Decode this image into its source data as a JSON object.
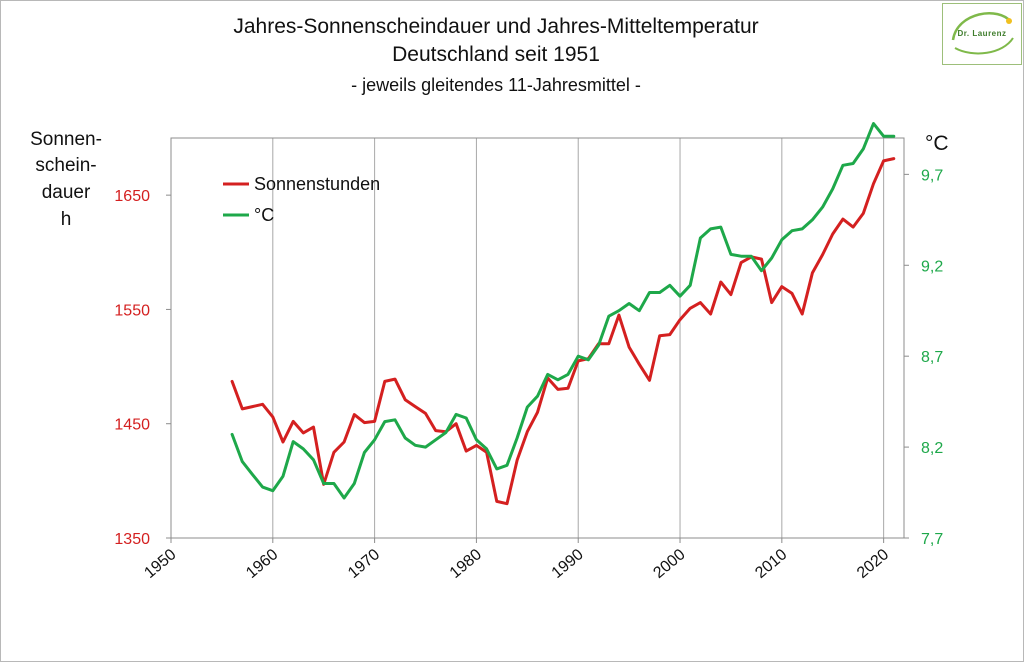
{
  "title": "Jahres-Sonnenscheindauer und Jahres-Mitteltemperatur",
  "subtitle": "Deutschland seit 1951",
  "note": "- jeweils gleitendes 11-Jahresmittel -",
  "logo_text": "Dr. Laurenz",
  "y_left_label_lines": [
    "Sonnen-",
    "schein-",
    "dauer",
    "h"
  ],
  "y_right_label": "°C",
  "colors": {
    "sun": "#d42020",
    "temp": "#1ea84a",
    "left_axis": "#d42020",
    "right_axis": "#1ea84a"
  },
  "chart_data": {
    "type": "line",
    "xlim": [
      1950,
      2022
    ],
    "x_ticks": [
      1950,
      1960,
      1970,
      1980,
      1990,
      2000,
      2010,
      2020
    ],
    "y_left": {
      "ylim": [
        1350,
        1700
      ],
      "ticks": [
        1350,
        1450,
        1550,
        1650
      ],
      "color": "#d42020"
    },
    "y_right": {
      "ylim": [
        7.7,
        9.9
      ],
      "ticks": [
        "7,7",
        "8,2",
        "8,7",
        "9,2",
        "9,7"
      ],
      "tick_values": [
        7.7,
        8.2,
        8.7,
        9.2,
        9.7
      ],
      "color": "#1ea84a"
    },
    "grid": "vertical",
    "legend_position": "top-left",
    "series": [
      {
        "name": "Sonnenstunden",
        "axis": "left",
        "x": [
          1956,
          1957,
          1958,
          1959,
          1960,
          1961,
          1962,
          1963,
          1964,
          1965,
          1966,
          1967,
          1968,
          1969,
          1970,
          1971,
          1972,
          1973,
          1974,
          1975,
          1976,
          1977,
          1978,
          1979,
          1980,
          1981,
          1982,
          1983,
          1984,
          1985,
          1986,
          1987,
          1988,
          1989,
          1990,
          1991,
          1992,
          1993,
          1994,
          1995,
          1996,
          1997,
          1998,
          1999,
          2000,
          2001,
          2002,
          2003,
          2004,
          2005,
          2006,
          2007,
          2008,
          2009,
          2010,
          2011,
          2012,
          2013,
          2014,
          2015,
          2016,
          2017,
          2018,
          2019,
          2020,
          2021
        ],
        "values": [
          1487,
          1463,
          1465,
          1467,
          1456,
          1434,
          1452,
          1442,
          1447,
          1397,
          1425,
          1434,
          1458,
          1451,
          1452,
          1487,
          1489,
          1471,
          1465,
          1459,
          1444,
          1443,
          1450,
          1426,
          1431,
          1425,
          1382,
          1380,
          1418,
          1443,
          1460,
          1490,
          1480,
          1481,
          1505,
          1507,
          1520,
          1520,
          1545,
          1517,
          1502,
          1488,
          1527,
          1528,
          1541,
          1551,
          1556,
          1546,
          1574,
          1563,
          1591,
          1596,
          1594,
          1556,
          1570,
          1564,
          1546,
          1582,
          1598,
          1616,
          1629,
          1622,
          1634,
          1660,
          1680,
          1682
        ]
      },
      {
        "name": "°C",
        "axis": "right",
        "x": [
          1956,
          1957,
          1958,
          1959,
          1960,
          1961,
          1962,
          1963,
          1964,
          1965,
          1966,
          1967,
          1968,
          1969,
          1970,
          1971,
          1972,
          1973,
          1974,
          1975,
          1976,
          1977,
          1978,
          1979,
          1980,
          1981,
          1982,
          1983,
          1984,
          1985,
          1986,
          1987,
          1988,
          1989,
          1990,
          1991,
          1992,
          1993,
          1994,
          1995,
          1996,
          1997,
          1998,
          1999,
          2000,
          2001,
          2002,
          2003,
          2004,
          2005,
          2006,
          2007,
          2008,
          2009,
          2010,
          2011,
          2012,
          2013,
          2014,
          2015,
          2016,
          2017,
          2018,
          2019,
          2020,
          2021
        ],
        "values": [
          8.27,
          8.12,
          8.05,
          7.98,
          7.96,
          8.04,
          8.23,
          8.19,
          8.13,
          8.0,
          8.0,
          7.92,
          8.0,
          8.17,
          8.24,
          8.34,
          8.35,
          8.25,
          8.21,
          8.2,
          8.24,
          8.28,
          8.38,
          8.36,
          8.24,
          8.19,
          8.08,
          8.1,
          8.25,
          8.42,
          8.48,
          8.6,
          8.57,
          8.6,
          8.7,
          8.68,
          8.76,
          8.92,
          8.95,
          8.99,
          8.95,
          9.05,
          9.05,
          9.09,
          9.03,
          9.09,
          9.35,
          9.4,
          9.41,
          9.26,
          9.25,
          9.25,
          9.17,
          9.24,
          9.34,
          9.39,
          9.4,
          9.45,
          9.52,
          9.62,
          9.75,
          9.76,
          9.84,
          9.98,
          9.91,
          9.91
        ]
      }
    ]
  }
}
